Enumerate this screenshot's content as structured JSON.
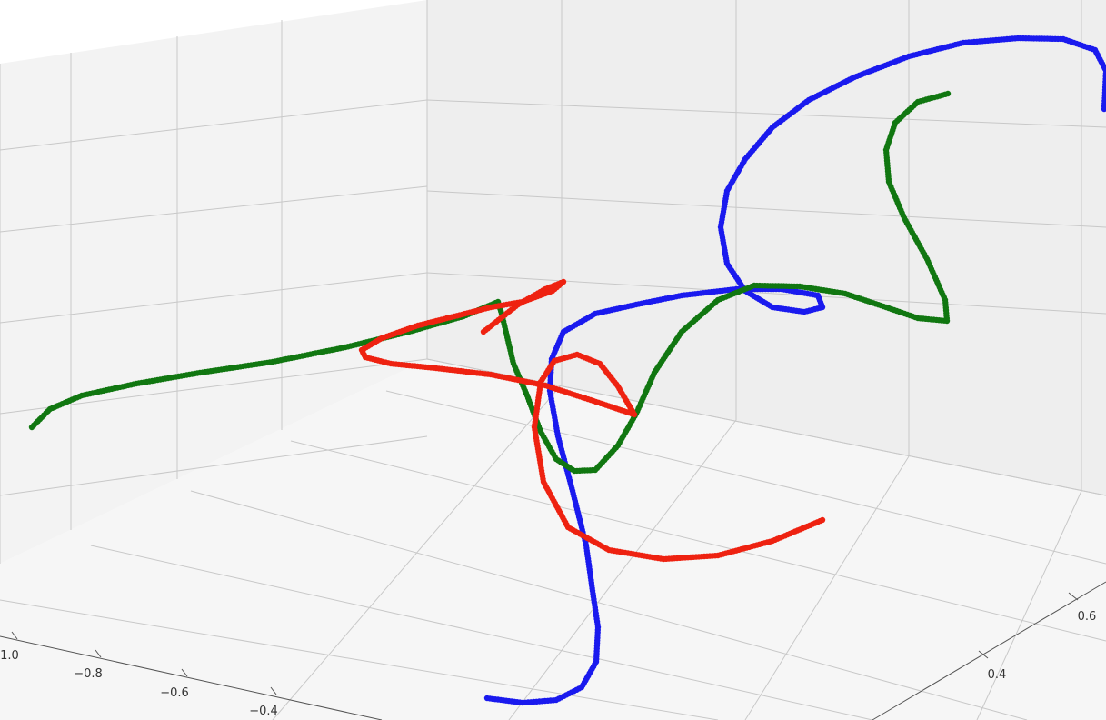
{
  "chart_data": {
    "type": "scatter",
    "projection": "3d",
    "grid": true,
    "pane_color": "#f2f2f2",
    "grid_color": "#c8c8c8",
    "x_axis": {
      "ticks": [
        "−1.0",
        "−0.8",
        "−0.6",
        "−0.4"
      ],
      "range": [
        -1.0,
        -0.35
      ]
    },
    "y_axis": {
      "ticks": [
        "0.4",
        "0.6"
      ],
      "range": [
        0.3,
        0.7
      ]
    },
    "z_axis": {
      "ticks": []
    },
    "series": [
      {
        "color": "#1a1aee",
        "points": [
          [
            536,
            768
          ],
          [
            575,
            773
          ],
          [
            612,
            770
          ],
          [
            640,
            756
          ],
          [
            656,
            728
          ],
          [
            658,
            690
          ],
          [
            652,
            650
          ],
          [
            645,
            600
          ],
          [
            630,
            540
          ],
          [
            614,
            480
          ],
          [
            605,
            430
          ],
          [
            607,
            395
          ],
          [
            620,
            365
          ],
          [
            655,
            345
          ],
          [
            700,
            335
          ],
          [
            750,
            325
          ],
          [
            810,
            318
          ],
          [
            860,
            318
          ],
          [
            900,
            325
          ],
          [
            905,
            338
          ],
          [
            885,
            343
          ],
          [
            850,
            338
          ],
          [
            820,
            320
          ],
          [
            800,
            290
          ],
          [
            793,
            250
          ],
          [
            800,
            210
          ],
          [
            820,
            175
          ],
          [
            850,
            140
          ],
          [
            890,
            110
          ],
          [
            940,
            85
          ],
          [
            1000,
            62
          ],
          [
            1060,
            47
          ],
          [
            1120,
            42
          ],
          [
            1170,
            43
          ],
          [
            1205,
            55
          ],
          [
            1217,
            78
          ],
          [
            1215,
            120
          ]
        ]
      },
      {
        "color": "#117711",
        "points": [
          [
            35,
            470
          ],
          [
            55,
            450
          ],
          [
            90,
            435
          ],
          [
            150,
            422
          ],
          [
            220,
            410
          ],
          [
            300,
            398
          ],
          [
            380,
            382
          ],
          [
            450,
            365
          ],
          [
            510,
            348
          ],
          [
            548,
            332
          ],
          [
            552,
            345
          ],
          [
            565,
            400
          ],
          [
            580,
            435
          ],
          [
            595,
            475
          ],
          [
            612,
            505
          ],
          [
            632,
            518
          ],
          [
            655,
            517
          ],
          [
            680,
            490
          ],
          [
            700,
            455
          ],
          [
            720,
            410
          ],
          [
            750,
            365
          ],
          [
            790,
            330
          ],
          [
            830,
            314
          ],
          [
            880,
            315
          ],
          [
            930,
            323
          ],
          [
            975,
            338
          ],
          [
            1010,
            350
          ],
          [
            1042,
            353
          ],
          [
            1040,
            330
          ],
          [
            1020,
            285
          ],
          [
            995,
            240
          ],
          [
            978,
            200
          ],
          [
            975,
            165
          ],
          [
            985,
            135
          ],
          [
            1010,
            112
          ],
          [
            1043,
            103
          ]
        ]
      },
      {
        "color": "#ee2211",
        "points": [
          [
            532,
            365
          ],
          [
            570,
            335
          ],
          [
            600,
            318
          ],
          [
            620,
            310
          ],
          [
            608,
            320
          ],
          [
            575,
            332
          ],
          [
            540,
            338
          ],
          [
            500,
            348
          ],
          [
            460,
            358
          ],
          [
            420,
            372
          ],
          [
            398,
            385
          ],
          [
            402,
            393
          ],
          [
            430,
            400
          ],
          [
            480,
            405
          ],
          [
            540,
            412
          ],
          [
            600,
            424
          ],
          [
            650,
            440
          ],
          [
            698,
            456
          ],
          [
            680,
            425
          ],
          [
            660,
            400
          ],
          [
            635,
            390
          ],
          [
            610,
            397
          ],
          [
            595,
            420
          ],
          [
            588,
            470
          ],
          [
            598,
            530
          ],
          [
            625,
            580
          ],
          [
            670,
            605
          ],
          [
            730,
            615
          ],
          [
            790,
            611
          ],
          [
            850,
            595
          ],
          [
            905,
            572
          ]
        ]
      }
    ]
  }
}
